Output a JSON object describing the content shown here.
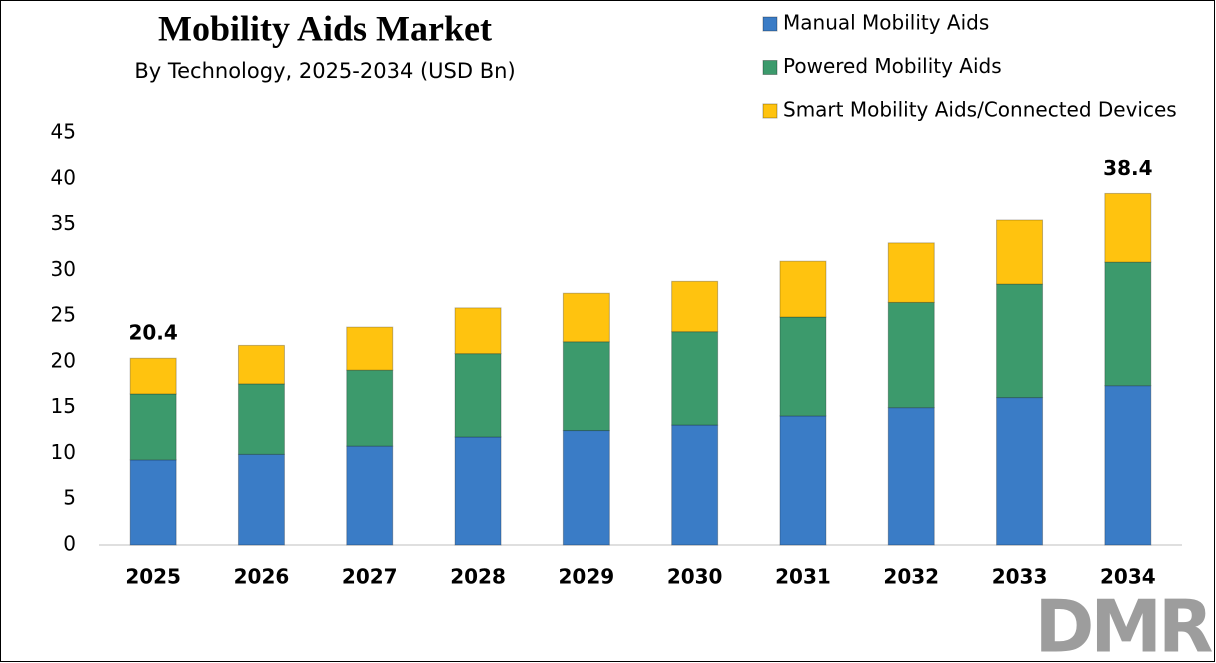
{
  "chart_data": {
    "type": "stacked_bar",
    "title": "Mobility Aids Market",
    "subtitle": "By Technology, 2025-2034 (USD Bn)",
    "categories": [
      "2025",
      "2026",
      "2027",
      "2028",
      "2029",
      "2030",
      "2031",
      "2032",
      "2033",
      "2034"
    ],
    "series": [
      {
        "name": "Manual Mobility Aids",
        "color": "#3a7cc6",
        "values": [
          9.3,
          9.9,
          10.8,
          11.8,
          12.5,
          13.1,
          14.1,
          15.0,
          16.1,
          17.4
        ]
      },
      {
        "name": "Powered Mobility Aids",
        "color": "#3c9a6c",
        "values": [
          7.2,
          7.7,
          8.3,
          9.1,
          9.7,
          10.2,
          10.8,
          11.5,
          12.4,
          13.5
        ]
      },
      {
        "name": "Smart Mobility Aids/Connected Devices",
        "color": "#ffc30f",
        "values": [
          3.9,
          4.2,
          4.7,
          5.0,
          5.3,
          5.5,
          6.1,
          6.5,
          7.0,
          7.5
        ]
      }
    ],
    "annotations": [
      {
        "category": "2025",
        "value": 20.4
      },
      {
        "category": "2034",
        "value": 38.4
      }
    ],
    "ylim": [
      0,
      45
    ],
    "yticks": [
      0,
      5,
      10,
      15,
      20,
      25,
      30,
      35,
      40,
      45
    ],
    "grid": false,
    "legend": "top-right",
    "logo": "DMR"
  }
}
